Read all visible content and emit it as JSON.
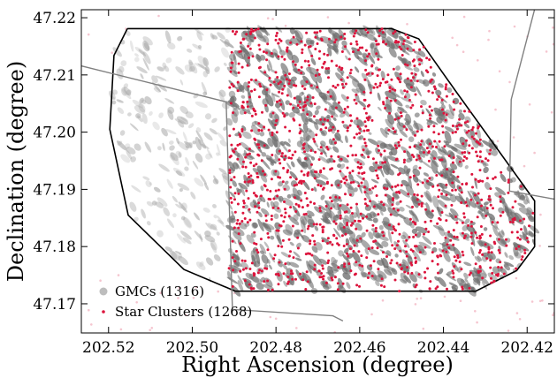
{
  "chart_data": {
    "type": "scatter",
    "title": "",
    "xlabel": "Right Ascension (degree)",
    "ylabel": "Declination (degree)",
    "xlim": [
      202.5265,
      202.4135
    ],
    "ylim": [
      47.1649,
      47.2214
    ],
    "x_inverted": true,
    "grid": false,
    "legend_position": "lower-left",
    "x_ticks": [
      202.52,
      202.5,
      202.48,
      202.46,
      202.44,
      202.42
    ],
    "x_tick_labels": [
      "202.52",
      "202.50",
      "202.48",
      "202.46",
      "202.44",
      "202.42"
    ],
    "y_ticks": [
      47.17,
      47.18,
      47.19,
      47.2,
      47.21,
      47.22
    ],
    "y_tick_labels": [
      "47.17",
      "47.18",
      "47.19",
      "47.20",
      "47.21",
      "47.22"
    ],
    "series": [
      {
        "name": "GMCs (1316)",
        "marker": "ellipse",
        "color": "#707070",
        "count": 1316
      },
      {
        "name": "Star Clusters (1268)",
        "marker": "dot",
        "color": "#dc143c",
        "count": 1268
      }
    ],
    "footprints": [
      {
        "role": "survey-outline",
        "color": "#000000",
        "points": [
          [
            202.5155,
            47.2181
          ],
          [
            202.4524,
            47.2181
          ],
          [
            202.4459,
            47.2163
          ],
          [
            202.4371,
            47.2072
          ],
          [
            202.4182,
            47.188
          ],
          [
            202.4182,
            47.18
          ],
          [
            202.4225,
            47.1758
          ],
          [
            202.4323,
            47.1722
          ],
          [
            202.4897,
            47.1722
          ],
          [
            202.502,
            47.176
          ],
          [
            202.5153,
            47.1855
          ],
          [
            202.5197,
            47.2005
          ],
          [
            202.5187,
            47.2134
          ],
          [
            202.5155,
            47.2181
          ]
        ]
      },
      {
        "role": "observation-field",
        "color": "#808080",
        "points": [
          [
            202.5272,
            47.2117
          ],
          [
            202.4919,
            47.2053
          ],
          [
            202.4904,
            47.169
          ],
          [
            202.4664,
            47.1679
          ],
          [
            202.464,
            47.167
          ]
        ]
      },
      {
        "role": "observation-field",
        "color": "#808080",
        "points": [
          [
            202.4175,
            47.2235
          ],
          [
            202.4238,
            47.2057
          ],
          [
            202.4242,
            47.1897
          ],
          [
            202.4135,
            47.1883
          ]
        ]
      }
    ]
  }
}
